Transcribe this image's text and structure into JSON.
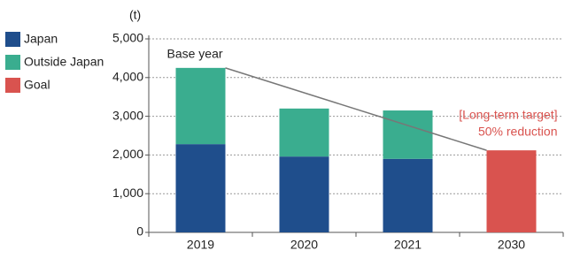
{
  "chart_data": {
    "type": "stacked-bar",
    "y_unit": "(t)",
    "categories": [
      "2019",
      "2020",
      "2021",
      "2030"
    ],
    "series": [
      {
        "name": "Japan",
        "color": "#1f4e8c",
        "values": [
          2280,
          1960,
          1900,
          null
        ]
      },
      {
        "name": "Outside Japan",
        "color": "#3aad8f",
        "values": [
          1970,
          1240,
          1250,
          null
        ]
      },
      {
        "name": "Goal",
        "color": "#d9534f",
        "values": [
          null,
          null,
          null,
          2120
        ]
      }
    ],
    "ylim": [
      0,
      5000
    ],
    "yticks": [
      0,
      {
        "value": 1000,
        "label": "1,000"
      },
      {
        "value": 2000,
        "label": "2,000"
      },
      {
        "value": 3000,
        "label": "3,000"
      },
      {
        "value": 4000,
        "label": "4,000"
      },
      {
        "value": 5000,
        "label": "5,000"
      }
    ],
    "grid": true,
    "annotations": [
      "Base year",
      "[Long-term target]",
      "50% reduction"
    ],
    "annotation_color": "#d9534f"
  }
}
